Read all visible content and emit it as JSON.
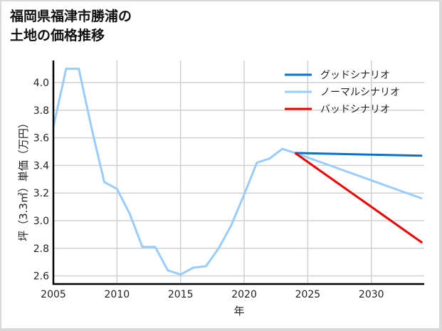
{
  "chart_data": {
    "type": "line",
    "title": "福岡県福津市勝浦の土地の価格推移",
    "title_lines": [
      "福岡県福津市勝浦の",
      "土地の価格推移"
    ],
    "xlabel": "年",
    "ylabel": "坪（3.3㎡）単価（万円）",
    "xlim": [
      2005,
      2034
    ],
    "ylim": [
      2.55,
      4.15
    ],
    "x_ticks": [
      2005,
      2010,
      2015,
      2020,
      2025,
      2030
    ],
    "y_ticks": [
      2.6,
      2.8,
      3.0,
      3.2,
      3.4,
      3.6,
      3.8,
      4.0
    ],
    "y_tick_labels": [
      "2.6",
      "2.8",
      "3.0",
      "3.2",
      "3.4",
      "3.6",
      "3.8",
      "4.0"
    ],
    "grid": true,
    "legend_position": "upper right",
    "series": [
      {
        "name": "グッドシナリオ",
        "color": "#0a72c8",
        "x": [
          2024,
          2034
        ],
        "values": [
          3.49,
          3.47
        ]
      },
      {
        "name": "ノーマルシナリオ",
        "color": "#99ccff",
        "x": [
          2005,
          2006,
          2007,
          2008,
          2009,
          2010,
          2011,
          2012,
          2013,
          2014,
          2015,
          2016,
          2017,
          2018,
          2019,
          2020,
          2021,
          2022,
          2023,
          2024,
          2034
        ],
        "values": [
          3.68,
          4.1,
          4.1,
          3.67,
          3.28,
          3.23,
          3.05,
          2.81,
          2.81,
          2.64,
          2.61,
          2.66,
          2.67,
          2.8,
          2.97,
          3.19,
          3.42,
          3.45,
          3.52,
          3.49,
          3.16
        ]
      },
      {
        "name": "バッドシナリオ",
        "color": "#ee0000",
        "x": [
          2024,
          2034
        ],
        "values": [
          3.49,
          2.84
        ]
      }
    ]
  }
}
